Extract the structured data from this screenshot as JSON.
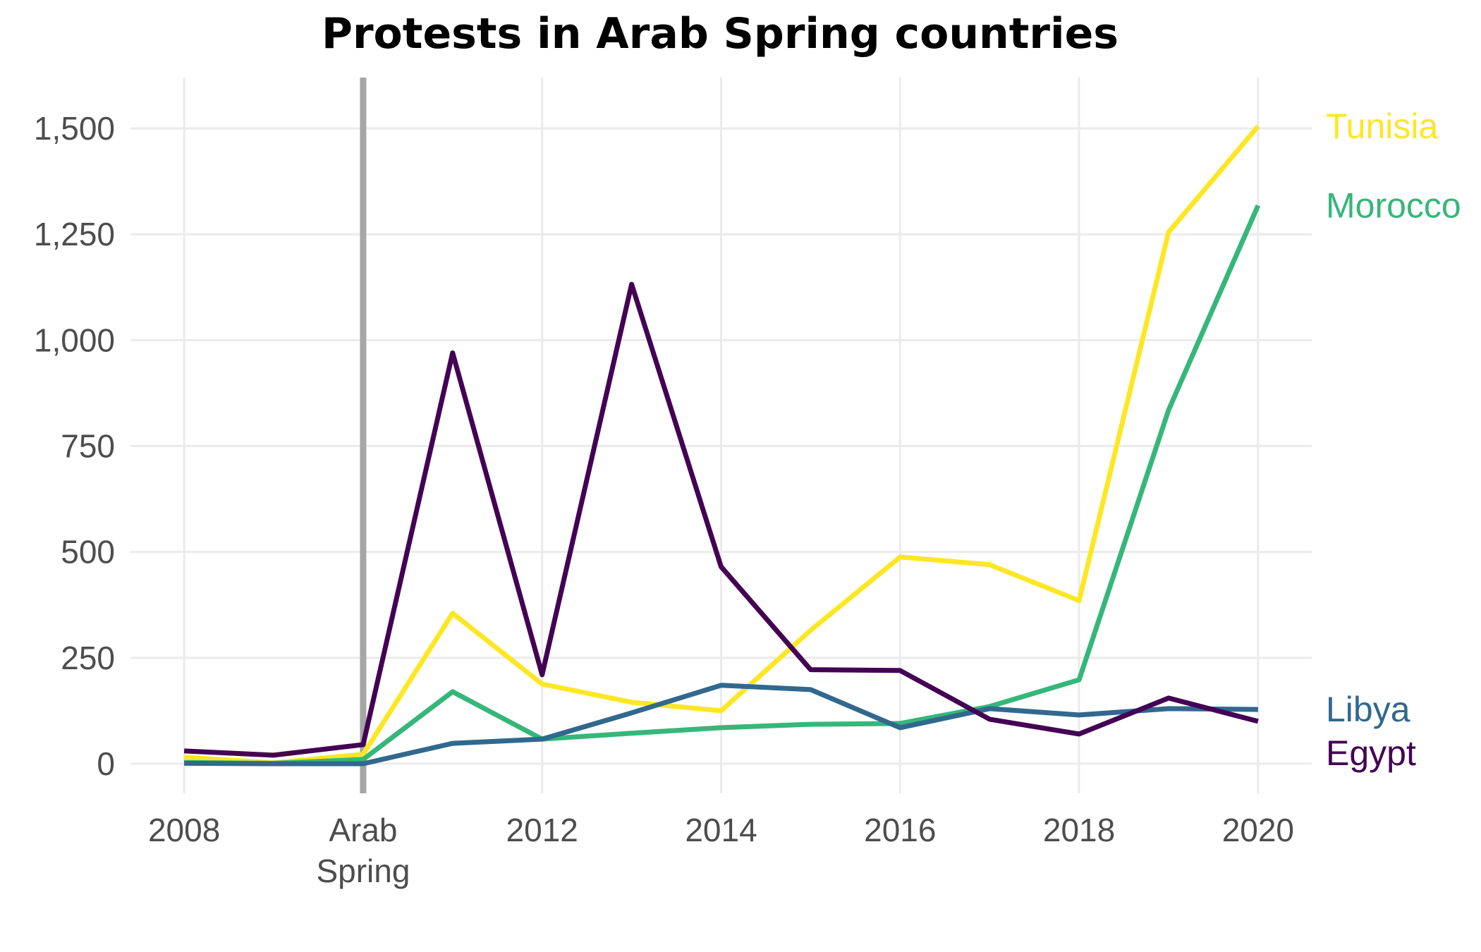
{
  "chart_data": {
    "type": "line",
    "title": "Protests in Arab Spring countries",
    "xlabel": "",
    "ylabel": "",
    "x": [
      2008,
      2009,
      2010,
      2011,
      2012,
      2013,
      2014,
      2015,
      2016,
      2017,
      2018,
      2019,
      2020
    ],
    "xlim": [
      2007.4,
      2020.6
    ],
    "ylim": [
      -70,
      1620
    ],
    "x_ticks": [
      {
        "value": 2008,
        "label": "2008"
      },
      {
        "value": 2010,
        "label": "Arab\nSpring"
      },
      {
        "value": 2012,
        "label": "2012"
      },
      {
        "value": 2014,
        "label": "2014"
      },
      {
        "value": 2016,
        "label": "2016"
      },
      {
        "value": 2018,
        "label": "2018"
      },
      {
        "value": 2020,
        "label": "2020"
      }
    ],
    "y_ticks": [
      {
        "value": 0,
        "label": "0"
      },
      {
        "value": 250,
        "label": "250"
      },
      {
        "value": 500,
        "label": "500"
      },
      {
        "value": 750,
        "label": "750"
      },
      {
        "value": 1000,
        "label": "1,000"
      },
      {
        "value": 1250,
        "label": "1,250"
      },
      {
        "value": 1500,
        "label": "1,500"
      }
    ],
    "grid": true,
    "legend": "direct labels at right end of lines",
    "annotation": {
      "type": "vertical-line",
      "x": 2010,
      "color": "#a6a6a6"
    },
    "series": [
      {
        "name": "Tunisia",
        "color": "#fde725",
        "values": [
          15,
          2,
          22,
          355,
          188,
          145,
          125,
          315,
          488,
          470,
          385,
          1255,
          1505
        ]
      },
      {
        "name": "Morocco",
        "color": "#35b779",
        "values": [
          3,
          1,
          10,
          170,
          58,
          72,
          85,
          93,
          95,
          135,
          198,
          835,
          1318
        ]
      },
      {
        "name": "Libya",
        "color": "#31688e",
        "values": [
          1,
          0,
          0,
          48,
          58,
          120,
          185,
          175,
          85,
          130,
          115,
          130,
          128
        ]
      },
      {
        "name": "Egypt",
        "color": "#440154",
        "values": [
          30,
          20,
          45,
          970,
          210,
          1132,
          465,
          222,
          220,
          105,
          70,
          155,
          100
        ]
      }
    ]
  }
}
